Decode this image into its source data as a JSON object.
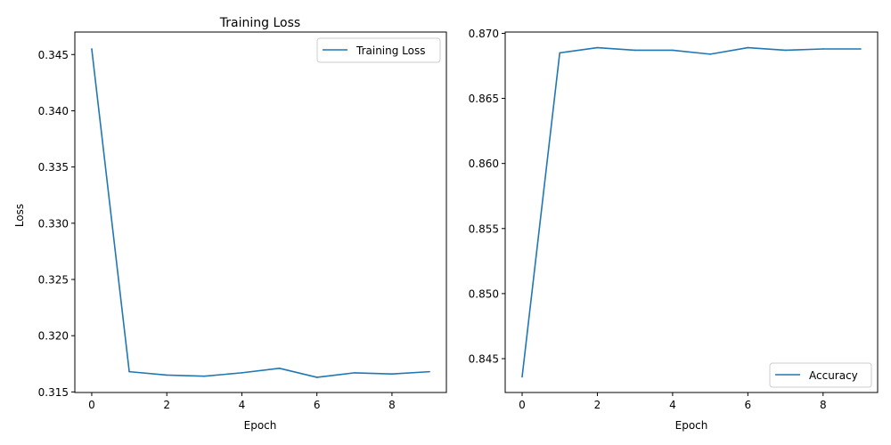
{
  "chart_data": [
    {
      "type": "line",
      "title": "Training Loss",
      "xlabel": "Epoch",
      "ylabel": "Loss",
      "xlim": [
        -0.45,
        9.45
      ],
      "ylim": [
        0.31495,
        0.347
      ],
      "xticks": [
        0,
        2,
        4,
        6,
        8
      ],
      "xtick_labels": [
        "0",
        "2",
        "4",
        "6",
        "8"
      ],
      "yticks": [
        0.315,
        0.32,
        0.325,
        0.33,
        0.335,
        0.34,
        0.345
      ],
      "ytick_labels": [
        "0.315",
        "0.320",
        "0.325",
        "0.330",
        "0.335",
        "0.340",
        "0.345"
      ],
      "legend": "top-right",
      "grid": false,
      "series": [
        {
          "name": "Training Loss",
          "color": "#1f77b4",
          "x": [
            0,
            1,
            2,
            3,
            4,
            5,
            6,
            7,
            8,
            9
          ],
          "y": [
            0.3455,
            0.3168,
            0.3165,
            0.3164,
            0.3167,
            0.3171,
            0.3163,
            0.3167,
            0.3166,
            0.3168
          ]
        }
      ]
    },
    {
      "type": "line",
      "title": "",
      "xlabel": "Epoch",
      "ylabel": "",
      "xlim": [
        -0.45,
        9.45
      ],
      "ylim": [
        0.8424,
        0.8701
      ],
      "xticks": [
        0,
        2,
        4,
        6,
        8
      ],
      "xtick_labels": [
        "0",
        "2",
        "4",
        "6",
        "8"
      ],
      "yticks": [
        0.845,
        0.85,
        0.855,
        0.86,
        0.865,
        0.87
      ],
      "ytick_labels": [
        "0.845",
        "0.850",
        "0.855",
        "0.860",
        "0.865",
        "0.870"
      ],
      "legend": "bottom-right",
      "grid": false,
      "series": [
        {
          "name": "Accuracy",
          "color": "#1f77b4",
          "x": [
            0,
            1,
            2,
            3,
            4,
            5,
            6,
            7,
            8,
            9
          ],
          "y": [
            0.8436,
            0.8685,
            0.8689,
            0.8687,
            0.8687,
            0.8684,
            0.8689,
            0.8687,
            0.8688,
            0.8688
          ]
        }
      ]
    }
  ]
}
